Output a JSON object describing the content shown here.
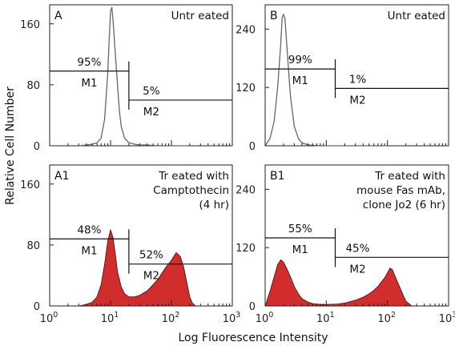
{
  "figure": {
    "xlabel": "Log Fluorescence Intensity",
    "ylabel": "Relative Cell Number"
  },
  "chart_data": [
    {
      "type": "area",
      "panel": "A",
      "title": "Untr eated",
      "xscale": "log",
      "xlim": [
        1,
        1000
      ],
      "ylim": [
        0,
        185
      ],
      "yticks": [
        0,
        80,
        160
      ],
      "xticks": [
        {
          "base": "10",
          "exp": "0"
        },
        {
          "base": "10",
          "exp": "1"
        },
        {
          "base": "10",
          "exp": "2"
        },
        {
          "base": "10",
          "exp": "3"
        }
      ],
      "style": "outline",
      "series": [
        {
          "x": [
            3,
            4,
            5,
            6,
            7,
            8,
            9,
            9.5,
            10,
            10.5,
            11,
            12,
            13,
            14,
            15,
            17,
            20,
            25,
            30,
            40,
            60,
            100,
            200
          ],
          "y": [
            0,
            1,
            2,
            4,
            10,
            35,
            95,
            140,
            176,
            182,
            165,
            120,
            80,
            45,
            25,
            10,
            4,
            2,
            1,
            1,
            0,
            0,
            0
          ]
        }
      ],
      "gates": [
        {
          "label": "M1",
          "pct": "95%",
          "x": [
            1,
            20
          ],
          "y": 98
        },
        {
          "label": "M2",
          "pct": "5%",
          "x": [
            20,
            1000
          ],
          "y": 60
        }
      ]
    },
    {
      "type": "area",
      "panel": "B",
      "title": "Untr eated",
      "xscale": "log",
      "xlim": [
        1,
        1000
      ],
      "ylim": [
        0,
        290
      ],
      "yticks": [
        0,
        120,
        240
      ],
      "xticks": [
        {
          "base": "10",
          "exp": "0"
        },
        {
          "base": "10",
          "exp": "1"
        },
        {
          "base": "10",
          "exp": "2"
        },
        {
          "base": "10",
          "exp": "3"
        }
      ],
      "style": "outline",
      "series": [
        {
          "x": [
            1,
            1.2,
            1.4,
            1.6,
            1.8,
            1.9,
            2,
            2.1,
            2.2,
            2.4,
            2.6,
            3,
            3.5,
            4,
            5,
            6,
            8,
            10,
            20,
            50,
            100
          ],
          "y": [
            0,
            15,
            50,
            120,
            210,
            265,
            270,
            262,
            230,
            160,
            100,
            40,
            15,
            6,
            2,
            1,
            0,
            0,
            0,
            0,
            0
          ]
        }
      ],
      "gates": [
        {
          "label": "M1",
          "pct": "99%",
          "x": [
            1,
            14
          ],
          "y": 158
        },
        {
          "label": "M2",
          "pct": "1%",
          "x": [
            14,
            1000
          ],
          "y": 118
        }
      ]
    },
    {
      "type": "area",
      "panel": "A1",
      "title": "Tr eated with\nCamptothecin\n(4 hr)",
      "xscale": "log",
      "xlim": [
        1,
        1000
      ],
      "ylim": [
        0,
        185
      ],
      "yticks": [
        0,
        80,
        160
      ],
      "xticks": [
        {
          "base": "10",
          "exp": "0"
        },
        {
          "base": "10",
          "exp": "1"
        },
        {
          "base": "10",
          "exp": "2"
        },
        {
          "base": "10",
          "exp": "3"
        }
      ],
      "style": "filled",
      "fill": "#d22d2d",
      "series": [
        {
          "x": [
            3,
            4,
            5,
            6,
            7,
            8,
            9,
            10,
            11,
            12,
            13,
            15,
            17,
            20,
            25,
            30,
            40,
            50,
            60,
            80,
            100,
            120,
            140,
            160,
            180,
            200,
            220,
            250
          ],
          "y": [
            0,
            2,
            5,
            12,
            28,
            55,
            85,
            100,
            90,
            68,
            45,
            25,
            16,
            12,
            12,
            14,
            20,
            28,
            35,
            50,
            60,
            70,
            65,
            50,
            30,
            12,
            4,
            0
          ]
        }
      ],
      "gates": [
        {
          "label": "M1",
          "pct": "48%",
          "x": [
            1,
            20
          ],
          "y": 88
        },
        {
          "label": "M2",
          "pct": "52%",
          "x": [
            20,
            1000
          ],
          "y": 55
        }
      ]
    },
    {
      "type": "area",
      "panel": "B1",
      "title": "Tr eated with\nmouse Fas mAb,\nclone Jo2 (6 hr)",
      "xscale": "log",
      "xlim": [
        1,
        1000
      ],
      "ylim": [
        0,
        290
      ],
      "yticks": [
        0,
        120,
        240
      ],
      "xticks": [
        {
          "base": "10",
          "exp": "0"
        },
        {
          "base": "10",
          "exp": "1"
        },
        {
          "base": "10",
          "exp": "2"
        },
        {
          "base": "10",
          "exp": "3"
        }
      ],
      "style": "filled",
      "fill": "#d22d2d",
      "series": [
        {
          "x": [
            1,
            1.2,
            1.4,
            1.6,
            1.8,
            2,
            2.3,
            2.6,
            3,
            3.5,
            4,
            5,
            6,
            8,
            10,
            15,
            20,
            30,
            40,
            50,
            60,
            70,
            80,
            90,
            100,
            110,
            120,
            140,
            170,
            200,
            250
          ],
          "y": [
            0,
            30,
            60,
            85,
            95,
            90,
            75,
            60,
            40,
            25,
            15,
            8,
            5,
            3,
            3,
            4,
            6,
            12,
            18,
            25,
            32,
            40,
            50,
            58,
            68,
            78,
            75,
            55,
            30,
            10,
            0
          ]
        }
      ],
      "gates": [
        {
          "label": "M1",
          "pct": "55%",
          "x": [
            1,
            14
          ],
          "y": 140
        },
        {
          "label": "M2",
          "pct": "45%",
          "x": [
            14,
            1000
          ],
          "y": 100
        }
      ]
    }
  ]
}
